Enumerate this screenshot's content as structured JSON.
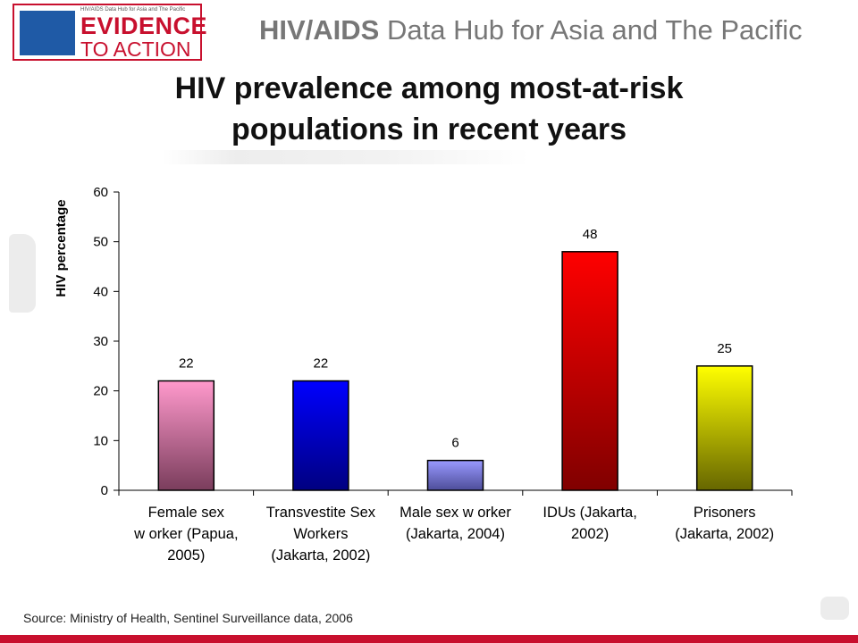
{
  "header": {
    "logo_small_text": "HIV/AIDS Data Hub for Asia and The Pacific",
    "logo_line1": "EVIDENCE",
    "logo_line2": "TO ACTION",
    "hub_title_bold": "HIV/AIDS",
    "hub_title_rest": " Data Hub for Asia and The Pacific"
  },
  "slide": {
    "title": "HIV prevalence among most-at-risk\npopulations in recent years",
    "source": "Source: Ministry of Health, Sentinel Surveillance data, 2006"
  },
  "colors": {
    "brand_red": "#c8102e",
    "bar_top": [
      "#ff99cc",
      "#0000ff",
      "#9999ff",
      "#ff0000",
      "#ffff00"
    ],
    "bar_bottom": [
      "#7a3d5c",
      "#000080",
      "#4d4d99",
      "#800000",
      "#666600"
    ]
  },
  "chart_data": {
    "type": "bar",
    "categories": [
      [
        "Female sex",
        "w orker (Papua,",
        "2005)"
      ],
      [
        "Transvestite Sex",
        "Workers",
        "(Jakarta, 2002)"
      ],
      [
        "Male sex w orker",
        "(Jakarta, 2004)"
      ],
      [
        "IDUs (Jakarta,",
        "2002)"
      ],
      [
        "Prisoners",
        "(Jakarta, 2002)"
      ]
    ],
    "values": [
      22,
      22,
      6,
      48,
      25
    ],
    "data_labels": [
      "22",
      "22",
      "6",
      "48",
      "25"
    ],
    "ylabel": "HIV percentage",
    "xlabel": "",
    "ylim": [
      0,
      60
    ],
    "yticks": [
      0,
      10,
      20,
      30,
      40,
      50,
      60
    ],
    "grid": false,
    "legend": "none"
  }
}
